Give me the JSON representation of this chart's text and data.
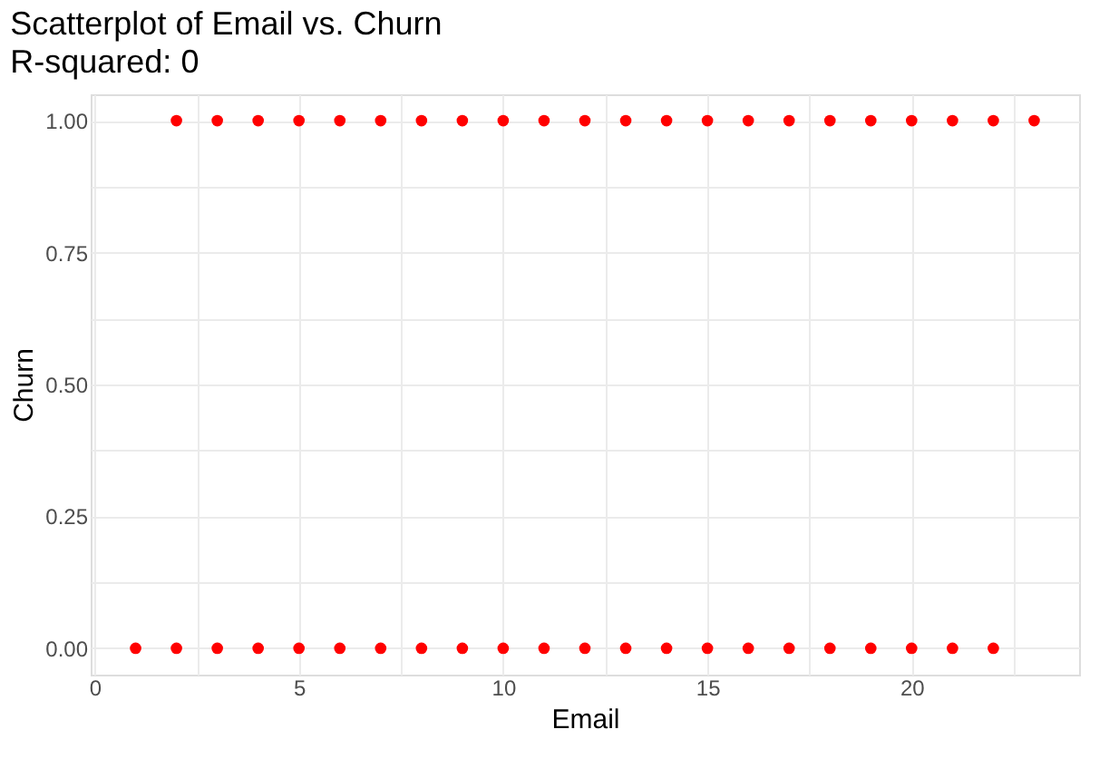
{
  "chart_data": {
    "type": "scatter",
    "title": "Scatterplot of Email vs. Churn",
    "subtitle": "R-squared: 0",
    "xlabel": "Email",
    "ylabel": "Churn",
    "x": [
      1,
      2,
      3,
      4,
      5,
      6,
      7,
      8,
      9,
      10,
      11,
      12,
      13,
      14,
      15,
      16,
      17,
      18,
      19,
      20,
      21,
      22,
      2,
      3,
      4,
      5,
      6,
      7,
      8,
      9,
      10,
      11,
      12,
      13,
      14,
      15,
      16,
      17,
      18,
      19,
      20,
      21,
      22,
      23
    ],
    "series": [
      {
        "color": "#ff0000",
        "values": [
          0,
          0,
          0,
          0,
          0,
          0,
          0,
          0,
          0,
          0,
          0,
          0,
          0,
          0,
          0,
          0,
          0,
          0,
          0,
          0,
          0,
          0,
          1,
          1,
          1,
          1,
          1,
          1,
          1,
          1,
          1,
          1,
          1,
          1,
          1,
          1,
          1,
          1,
          1,
          1,
          1,
          1,
          1,
          1
        ]
      }
    ],
    "xlim": [
      -0.1,
      24.1
    ],
    "ylim": [
      -0.05,
      1.05
    ],
    "xticks": [
      0,
      {
        "value": 2.5,
        "label": null
      },
      5,
      {
        "value": 7.5,
        "label": null
      },
      10,
      {
        "value": 12.5,
        "label": null
      },
      15,
      {
        "value": 17.5,
        "label": null
      },
      20,
      {
        "value": 22.5,
        "label": null
      }
    ],
    "yticks": [
      {
        "value": 0,
        "label": "0.00"
      },
      {
        "value": 0.125,
        "label": null
      },
      {
        "value": 0.25,
        "label": "0.25"
      },
      {
        "value": 0.375,
        "label": null
      },
      {
        "value": 0.5,
        "label": "0.50"
      },
      {
        "value": 0.625,
        "label": null
      },
      {
        "value": 0.75,
        "label": "0.75"
      },
      {
        "value": 0.875,
        "label": null
      },
      {
        "value": 1,
        "label": "1.00"
      }
    ],
    "grid": true,
    "marker": "circle"
  }
}
